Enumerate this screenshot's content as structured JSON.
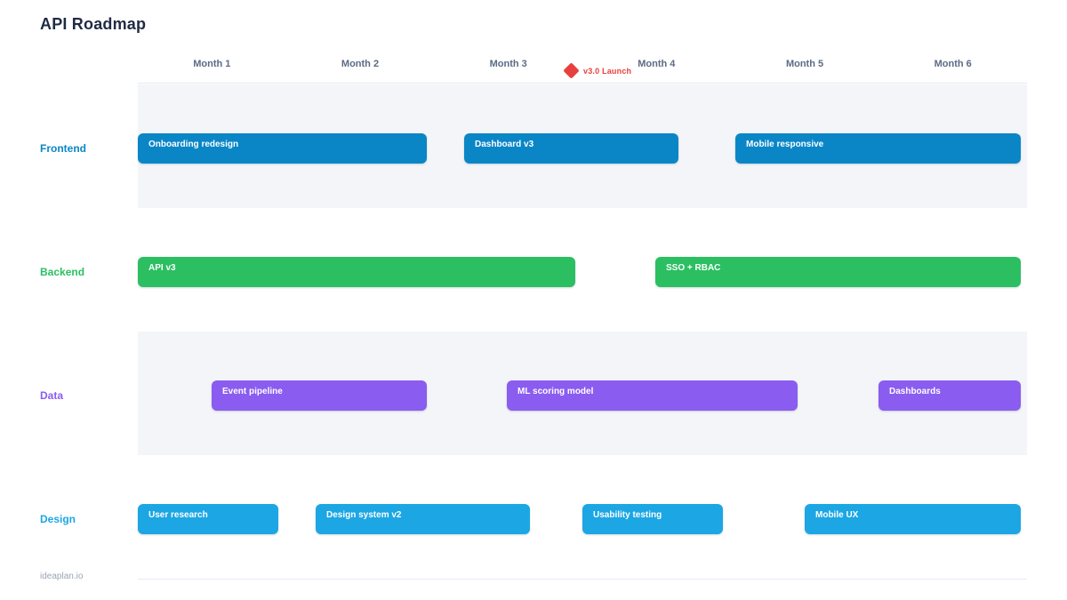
{
  "page": {
    "title": "API Roadmap",
    "footer_brand": "ideaplan.io"
  },
  "colors": {
    "frontend": "#0a86c6",
    "backend": "#2bbf62",
    "data": "#8a5cf0",
    "design": "#1ca6e4",
    "milestone": "#e8403c",
    "band": "#f3f5f8",
    "divider": "#e6eaf0",
    "title_text": "#1f2a44",
    "month_text": "#5b6b84",
    "footer_text": "#9aa5b5"
  },
  "chart_data": {
    "type": "bar",
    "subtype": "gantt-roadmap",
    "title": "API Roadmap",
    "x_axis": {
      "unit": "months",
      "range": [
        0,
        6
      ],
      "labels": [
        "Month 1",
        "Month 2",
        "Month 3",
        "Month 4",
        "Month 5",
        "Month 6"
      ]
    },
    "legend_position": "none",
    "grid": "off",
    "milestones": [
      {
        "label": "v3.0 Launch",
        "month": 2.95,
        "left_pct": 49.0,
        "color": "#e8403c"
      }
    ],
    "lanes": [
      {
        "label": "Frontend",
        "color": "#0a86c6",
        "tasks": [
          {
            "label": "Onboarding redesign",
            "start_month": 0.0,
            "end_month": 2.0,
            "left_pct": 0.0,
            "width_pct": 32.5
          },
          {
            "label": "Dashboard v3",
            "start_month": 2.2,
            "end_month": 3.65,
            "left_pct": 36.7,
            "width_pct": 24.1
          },
          {
            "label": "Mobile responsive",
            "start_month": 4.0,
            "end_month": 6.0,
            "left_pct": 67.2,
            "width_pct": 32.1
          }
        ]
      },
      {
        "label": "Backend",
        "color": "#2bbf62",
        "tasks": [
          {
            "label": "API v3",
            "start_month": 0.0,
            "end_month": 3.0,
            "left_pct": 0.0,
            "width_pct": 49.2
          },
          {
            "label": "SSO + RBAC",
            "start_month": 3.5,
            "end_month": 6.0,
            "left_pct": 58.2,
            "width_pct": 41.1
          }
        ]
      },
      {
        "label": "Data",
        "color": "#8a5cf0",
        "tasks": [
          {
            "label": "Event pipeline",
            "start_month": 0.5,
            "end_month": 2.0,
            "left_pct": 8.3,
            "width_pct": 24.2
          },
          {
            "label": "ML scoring model",
            "start_month": 2.5,
            "end_month": 4.45,
            "left_pct": 41.5,
            "width_pct": 32.7
          },
          {
            "label": "Dashboards",
            "start_month": 5.0,
            "end_month": 6.0,
            "left_pct": 83.3,
            "width_pct": 16.0
          }
        ]
      },
      {
        "label": "Design",
        "color": "#1ca6e4",
        "tasks": [
          {
            "label": "User research",
            "start_month": 0.0,
            "end_month": 0.95,
            "left_pct": 0.0,
            "width_pct": 15.8
          },
          {
            "label": "Design system v2",
            "start_month": 1.2,
            "end_month": 2.65,
            "left_pct": 20.0,
            "width_pct": 24.1
          },
          {
            "label": "Usability testing",
            "start_month": 3.0,
            "end_month": 3.95,
            "left_pct": 50.0,
            "width_pct": 15.8
          },
          {
            "label": "Mobile UX",
            "start_month": 4.5,
            "end_month": 6.0,
            "left_pct": 75.0,
            "width_pct": 24.3
          }
        ]
      }
    ]
  }
}
